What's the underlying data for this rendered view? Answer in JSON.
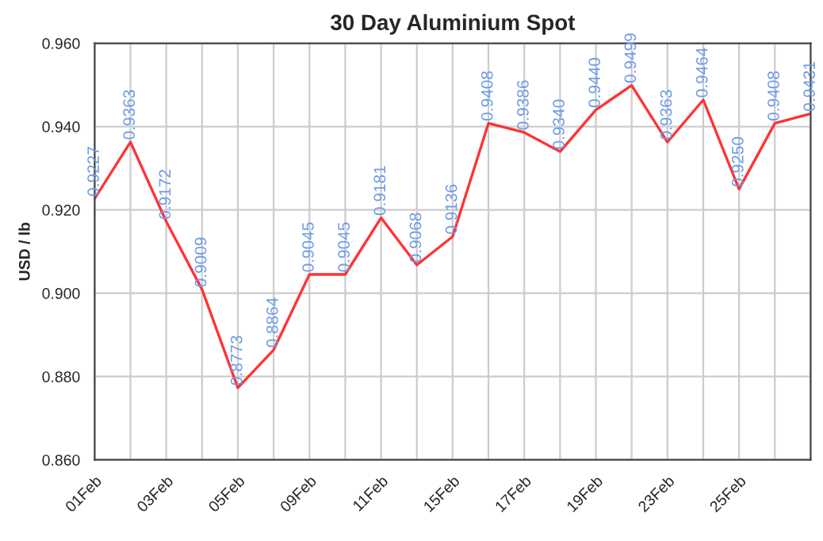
{
  "chart_data": {
    "type": "line",
    "title": "30 Day Aluminium Spot",
    "ylabel": "USD / lb",
    "categories": [
      "01Feb",
      null,
      "03Feb",
      null,
      "05Feb",
      null,
      "09Feb",
      null,
      "11Feb",
      null,
      "15Feb",
      null,
      "17Feb",
      null,
      "19Feb",
      null,
      "23Feb",
      null,
      "25Feb",
      null,
      null
    ],
    "series": [
      {
        "color": "#ff3333",
        "values": [
          0.9227,
          0.9363,
          0.9172,
          0.9009,
          0.8773,
          0.8864,
          0.9045,
          0.9045,
          0.9181,
          0.9068,
          0.9136,
          0.9408,
          0.9386,
          0.934,
          0.944,
          0.9499,
          0.9363,
          0.9464,
          0.925,
          0.9408,
          0.9431
        ],
        "value_labels": [
          "0.9227",
          "0.9363",
          "0.9172",
          "0.9009",
          "0.8773",
          "0.8864",
          "0.9045",
          "0.9045",
          "0.9181",
          "0.9068",
          "0.9136",
          "0.9408",
          "0.9386",
          "0.9340",
          "0.9440",
          "0.9499",
          "0.9363",
          "0.9464",
          "0.9250",
          "0.9408",
          "0.9431"
        ]
      }
    ],
    "ylim": [
      0.86,
      0.96
    ],
    "yticks": [
      {
        "value": 0.86,
        "label": "0.860"
      },
      {
        "value": 0.88,
        "label": "0.880"
      },
      {
        "value": 0.9,
        "label": "0.900"
      },
      {
        "value": 0.92,
        "label": "0.920"
      },
      {
        "value": 0.94,
        "label": "0.940"
      },
      {
        "value": 0.96,
        "label": "0.960"
      }
    ],
    "grid": true,
    "marker": "none",
    "line_style": "solid",
    "legend": false
  }
}
